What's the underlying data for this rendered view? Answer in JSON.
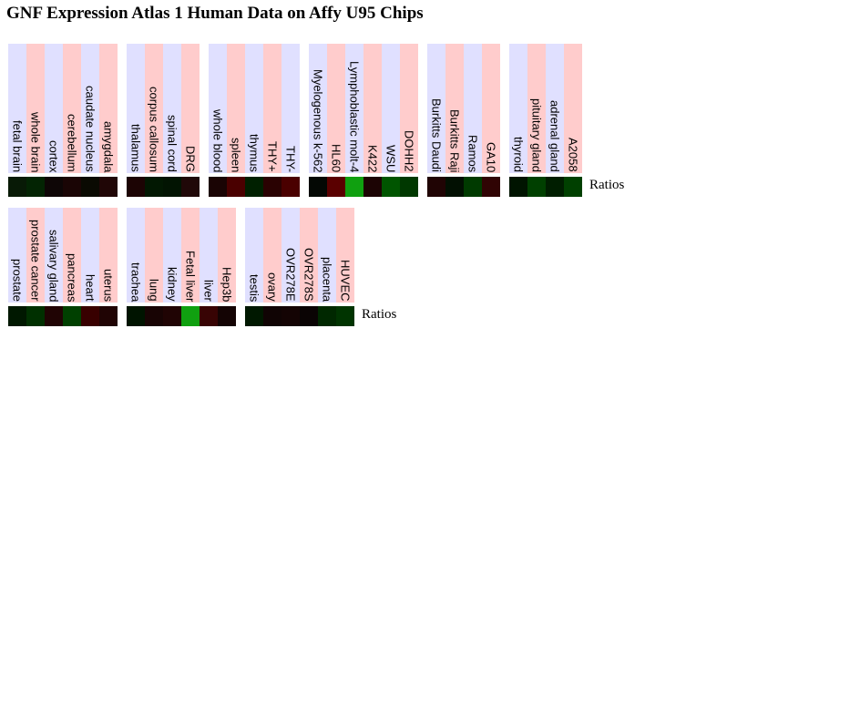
{
  "header": {
    "title": "GNF Expression Atlas 1 Human Data on Affy U95 Chips"
  },
  "rows": [
    {
      "legend": "Ratios",
      "groups": [
        {
          "columns": [
            {
              "label": "fetal brain",
              "color": "#081a06"
            },
            {
              "label": "whole brain",
              "color": "#032403"
            },
            {
              "label": "cortex",
              "color": "#0e0606"
            },
            {
              "label": "cerebellum",
              "color": "#1a0505"
            },
            {
              "label": "caudate nucleus",
              "color": "#0a0a02"
            },
            {
              "label": "amygdala",
              "color": "#200606"
            }
          ]
        },
        {
          "columns": [
            {
              "label": "thalamus",
              "color": "#1c0404"
            },
            {
              "label": "corpus callosum",
              "color": "#021802"
            },
            {
              "label": "spinal cord",
              "color": "#021402"
            },
            {
              "label": "DRG",
              "color": "#200808"
            }
          ]
        },
        {
          "columns": [
            {
              "label": "whole blood",
              "color": "#1a0404"
            },
            {
              "label": "spleen",
              "color": "#4a0000"
            },
            {
              "label": "thymus",
              "color": "#002000"
            },
            {
              "label": "THY+",
              "color": "#2a0202"
            },
            {
              "label": "THY-",
              "color": "#4a0000"
            }
          ]
        },
        {
          "columns": [
            {
              "label": "Myelogenous k-562",
              "color": "#040804"
            },
            {
              "label": "HL60",
              "color": "#5a0000"
            },
            {
              "label": "Lymphoblastic molt-4",
              "color": "#10a010"
            },
            {
              "label": "K422",
              "color": "#1c0404"
            },
            {
              "label": "WSU",
              "color": "#005500"
            },
            {
              "label": "DOHH2",
              "color": "#003800"
            }
          ]
        },
        {
          "columns": [
            {
              "label": "Burkitts Daudi",
              "color": "#200404"
            },
            {
              "label": "Burkitts Raji",
              "color": "#021002"
            },
            {
              "label": "Ramos",
              "color": "#003a00"
            },
            {
              "label": "GA10",
              "color": "#300404"
            }
          ]
        },
        {
          "columns": [
            {
              "label": "thyroid",
              "color": "#001400"
            },
            {
              "label": "pituitary gland",
              "color": "#004000"
            },
            {
              "label": "adrenal gland",
              "color": "#001e00"
            },
            {
              "label": "A2058",
              "color": "#004000"
            }
          ]
        }
      ]
    },
    {
      "legend": "Ratios",
      "groups": [
        {
          "columns": [
            {
              "label": "prostate",
              "color": "#001800"
            },
            {
              "label": "prostate cancer",
              "color": "#003000"
            },
            {
              "label": "salivary gland",
              "color": "#200404"
            },
            {
              "label": "pancreas",
              "color": "#004000"
            },
            {
              "label": "heart",
              "color": "#380000"
            },
            {
              "label": "uterus",
              "color": "#200404"
            }
          ]
        },
        {
          "columns": [
            {
              "label": "trachea",
              "color": "#001400"
            },
            {
              "label": "lung",
              "color": "#180404"
            },
            {
              "label": "kidney",
              "color": "#200404"
            },
            {
              "label": "Fetal liver",
              "color": "#10a010"
            },
            {
              "label": "liver",
              "color": "#380404"
            },
            {
              "label": "Hep3b",
              "color": "#140404"
            }
          ]
        },
        {
          "columns": [
            {
              "label": "testis",
              "color": "#001800"
            },
            {
              "label": "ovary",
              "color": "#100404"
            },
            {
              "label": "OVR278E",
              "color": "#140404"
            },
            {
              "label": "OVR278S",
              "color": "#0a0404"
            },
            {
              "label": "placenta",
              "color": "#002800"
            },
            {
              "label": "HUVEC",
              "color": "#003400"
            }
          ]
        }
      ]
    }
  ]
}
